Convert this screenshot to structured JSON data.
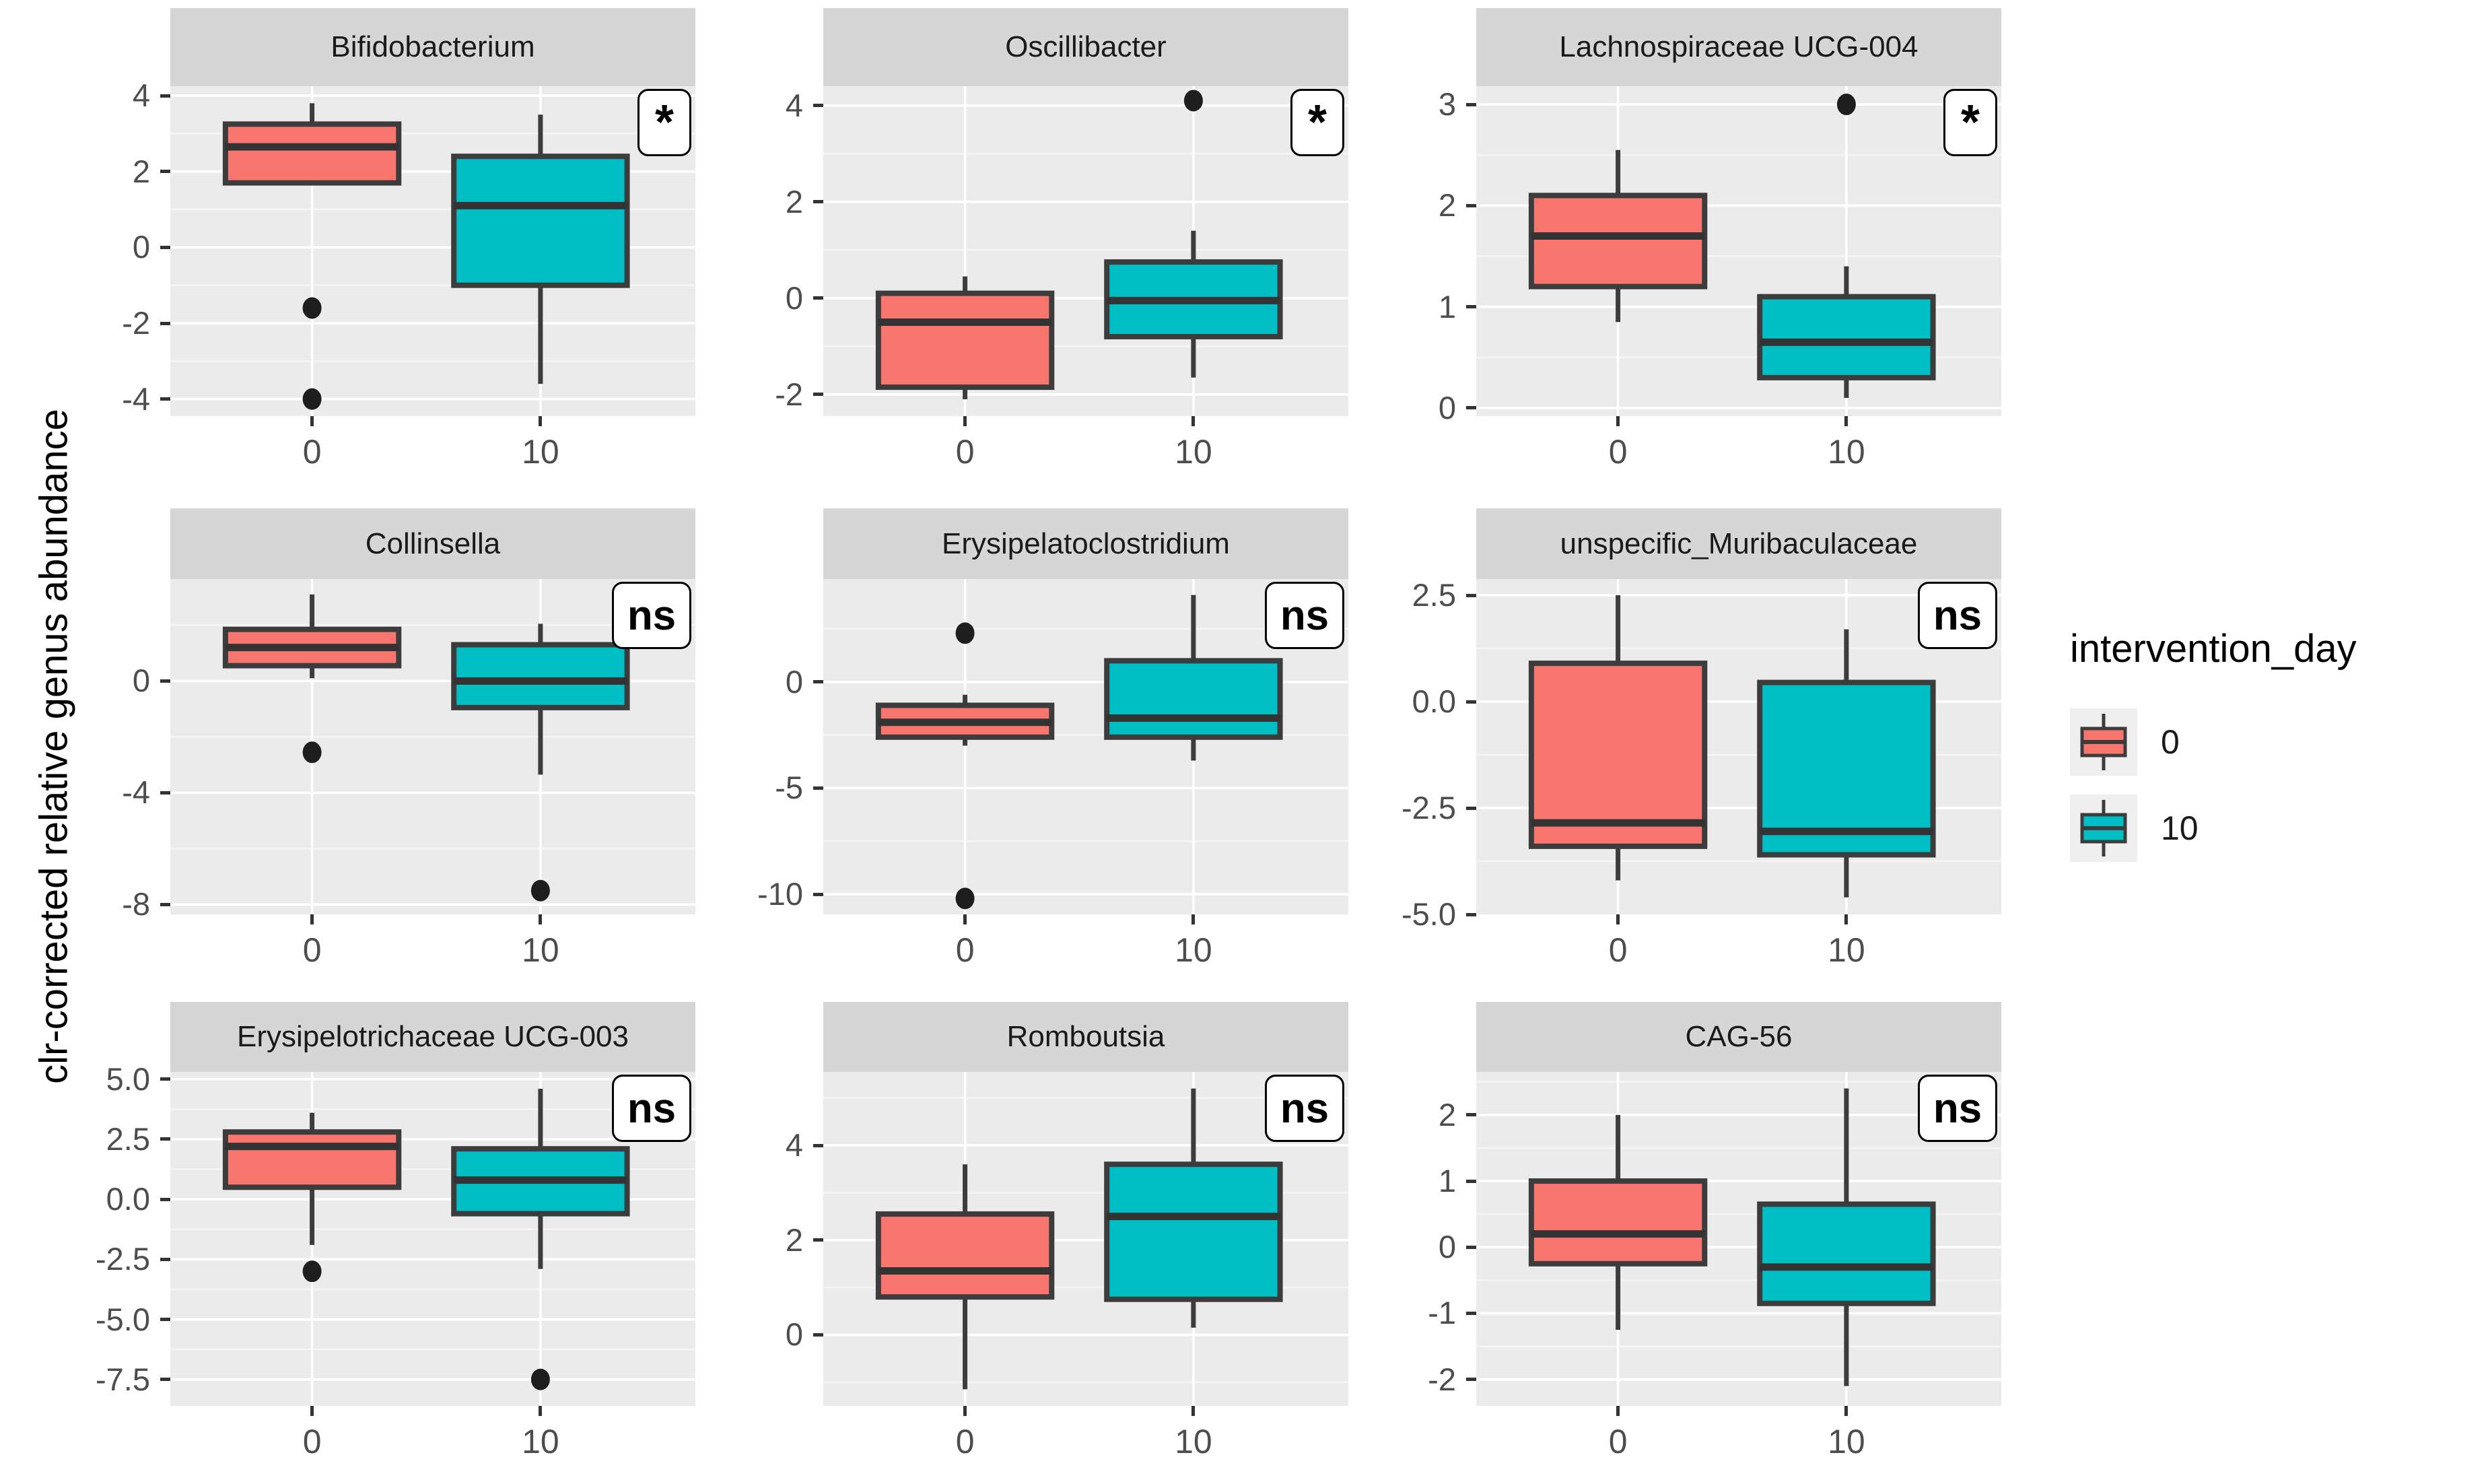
{
  "y_axis_label": "clr-corrected relative genus abundance",
  "x_tick_labels": [
    "0",
    "10"
  ],
  "legend": {
    "title": "intervention_day",
    "items": [
      {
        "label": "0",
        "color": "#F8766D"
      },
      {
        "label": "10",
        "color": "#00BFC4"
      }
    ]
  },
  "colors": {
    "day0_fill": "#F8766D",
    "day10_fill": "#00BFC4",
    "box_border": "#3c3c3c",
    "median": "#333333",
    "outlier": "#1e1e1e",
    "panel_bg": "#ebebeb",
    "strip_bg": "#d6d6d6",
    "grid_major": "#ffffff",
    "grid_minor": "#f5f5f5",
    "tick_text": "#4d4d4d"
  },
  "chart_data": {
    "type": "boxplot-grid",
    "x_categories": [
      "0",
      "10"
    ],
    "grid": {
      "ncols": 3,
      "nrows": 3
    },
    "facets": [
      {
        "title": "Bifidobacterium",
        "significance": "*",
        "yticks": [
          {
            "v": 4,
            "label": "4"
          },
          {
            "v": 2,
            "label": "2"
          },
          {
            "v": 0,
            "label": "0"
          },
          {
            "v": -2,
            "label": "-2"
          },
          {
            "v": -4,
            "label": "-4"
          }
        ],
        "ylim": [
          -4.45,
          4.25
        ],
        "groups": [
          {
            "day": "0",
            "whisker_low": 1.7,
            "q1": 1.7,
            "median": 2.65,
            "q3": 3.25,
            "whisker_high": 3.8,
            "outliers": [
              -1.6,
              -4.0
            ]
          },
          {
            "day": "10",
            "whisker_low": -3.6,
            "q1": -1.0,
            "median": 1.1,
            "q3": 2.4,
            "whisker_high": 3.5,
            "outliers": []
          }
        ]
      },
      {
        "title": "Oscillibacter",
        "significance": "*",
        "yticks": [
          {
            "v": 4,
            "label": "4"
          },
          {
            "v": 2,
            "label": "2"
          },
          {
            "v": 0,
            "label": "0"
          },
          {
            "v": -2,
            "label": "-2"
          }
        ],
        "ylim": [
          -2.45,
          4.4
        ],
        "groups": [
          {
            "day": "0",
            "whisker_low": -2.1,
            "q1": -1.85,
            "median": -0.5,
            "q3": 0.1,
            "whisker_high": 0.45,
            "outliers": []
          },
          {
            "day": "10",
            "whisker_low": -1.65,
            "q1": -0.8,
            "median": -0.05,
            "q3": 0.75,
            "whisker_high": 1.4,
            "outliers": [
              4.1
            ]
          }
        ]
      },
      {
        "title": "Lachnospiraceae UCG-004",
        "significance": "*",
        "yticks": [
          {
            "v": 3,
            "label": "3"
          },
          {
            "v": 2,
            "label": "2"
          },
          {
            "v": 1,
            "label": "1"
          },
          {
            "v": 0,
            "label": "0"
          }
        ],
        "ylim": [
          -0.08,
          3.18
        ],
        "groups": [
          {
            "day": "0",
            "whisker_low": 0.85,
            "q1": 1.2,
            "median": 1.7,
            "q3": 2.1,
            "whisker_high": 2.55,
            "outliers": []
          },
          {
            "day": "10",
            "whisker_low": 0.1,
            "q1": 0.3,
            "median": 0.65,
            "q3": 1.1,
            "whisker_high": 1.4,
            "outliers": [
              3.0
            ]
          }
        ]
      },
      {
        "title": "Collinsella",
        "significance": "ns",
        "yticks": [
          {
            "v": 0,
            "label": "0"
          },
          {
            "v": -4,
            "label": "-4"
          },
          {
            "v": -8,
            "label": "-8"
          }
        ],
        "ylim": [
          -8.35,
          3.65
        ],
        "groups": [
          {
            "day": "0",
            "whisker_low": 0.1,
            "q1": 0.55,
            "median": 1.2,
            "q3": 1.85,
            "whisker_high": 3.1,
            "outliers": [
              -2.55
            ]
          },
          {
            "day": "10",
            "whisker_low": -3.35,
            "q1": -0.95,
            "median": 0.0,
            "q3": 1.3,
            "whisker_high": 2.05,
            "outliers": [
              -7.5
            ]
          }
        ]
      },
      {
        "title": "Erysipelatoclostridium",
        "significance": "ns",
        "yticks": [
          {
            "v": 0,
            "label": "0"
          },
          {
            "v": -5,
            "label": "-5"
          },
          {
            "v": -10,
            "label": "-10"
          }
        ],
        "ylim": [
          -10.95,
          4.85
        ],
        "groups": [
          {
            "day": "0",
            "whisker_low": -3.0,
            "q1": -2.6,
            "median": -1.9,
            "q3": -1.1,
            "whisker_high": -0.6,
            "outliers": [
              2.3,
              -10.2
            ]
          },
          {
            "day": "10",
            "whisker_low": -3.7,
            "q1": -2.6,
            "median": -1.7,
            "q3": 1.0,
            "whisker_high": 4.1,
            "outliers": []
          }
        ]
      },
      {
        "title": "unspecific_Muribaculaceae",
        "significance": "ns",
        "yticks": [
          {
            "v": 2.5,
            "label": "2.5"
          },
          {
            "v": 0,
            "label": "0.0"
          },
          {
            "v": -2.5,
            "label": "-2.5"
          },
          {
            "v": -5,
            "label": "-5.0"
          }
        ],
        "ylim": [
          -5.0,
          2.88
        ],
        "groups": [
          {
            "day": "0",
            "whisker_low": -4.2,
            "q1": -3.4,
            "median": -2.85,
            "q3": 0.9,
            "whisker_high": 2.5,
            "outliers": []
          },
          {
            "day": "10",
            "whisker_low": -4.6,
            "q1": -3.6,
            "median": -3.05,
            "q3": 0.45,
            "whisker_high": 1.7,
            "outliers": []
          }
        ]
      },
      {
        "title": "Erysipelotrichaceae UCG-003",
        "significance": "ns",
        "yticks": [
          {
            "v": 5,
            "label": "5.0"
          },
          {
            "v": 2.5,
            "label": "2.5"
          },
          {
            "v": 0,
            "label": "0.0"
          },
          {
            "v": -2.5,
            "label": "-2.5"
          },
          {
            "v": -5,
            "label": "-5.0"
          },
          {
            "v": -7.5,
            "label": "-7.5"
          }
        ],
        "ylim": [
          -8.6,
          5.3
        ],
        "groups": [
          {
            "day": "0",
            "whisker_low": -1.9,
            "q1": 0.5,
            "median": 2.2,
            "q3": 2.8,
            "whisker_high": 3.6,
            "outliers": [
              -3.0
            ]
          },
          {
            "day": "10",
            "whisker_low": -2.9,
            "q1": -0.6,
            "median": 0.8,
            "q3": 2.1,
            "whisker_high": 4.6,
            "outliers": [
              -7.5
            ]
          }
        ]
      },
      {
        "title": "Romboutsia",
        "significance": "ns",
        "yticks": [
          {
            "v": 4,
            "label": "4"
          },
          {
            "v": 2,
            "label": "2"
          },
          {
            "v": 0,
            "label": "0"
          }
        ],
        "ylim": [
          -1.5,
          5.55
        ],
        "groups": [
          {
            "day": "0",
            "whisker_low": -1.15,
            "q1": 0.8,
            "median": 1.35,
            "q3": 2.55,
            "whisker_high": 3.6,
            "outliers": []
          },
          {
            "day": "10",
            "whisker_low": 0.15,
            "q1": 0.75,
            "median": 2.5,
            "q3": 3.6,
            "whisker_high": 5.2,
            "outliers": []
          }
        ]
      },
      {
        "title": "CAG-56",
        "significance": "ns",
        "yticks": [
          {
            "v": 2,
            "label": "2"
          },
          {
            "v": 1,
            "label": "1"
          },
          {
            "v": 0,
            "label": "0"
          },
          {
            "v": -1,
            "label": "-1"
          },
          {
            "v": -2,
            "label": "-2"
          }
        ],
        "ylim": [
          -2.4,
          2.65
        ],
        "groups": [
          {
            "day": "0",
            "whisker_low": -1.25,
            "q1": -0.25,
            "median": 0.2,
            "q3": 1.0,
            "whisker_high": 2.0,
            "outliers": []
          },
          {
            "day": "10",
            "whisker_low": -2.1,
            "q1": -0.85,
            "median": -0.3,
            "q3": 0.65,
            "whisker_high": 2.4,
            "outliers": []
          }
        ]
      }
    ]
  }
}
